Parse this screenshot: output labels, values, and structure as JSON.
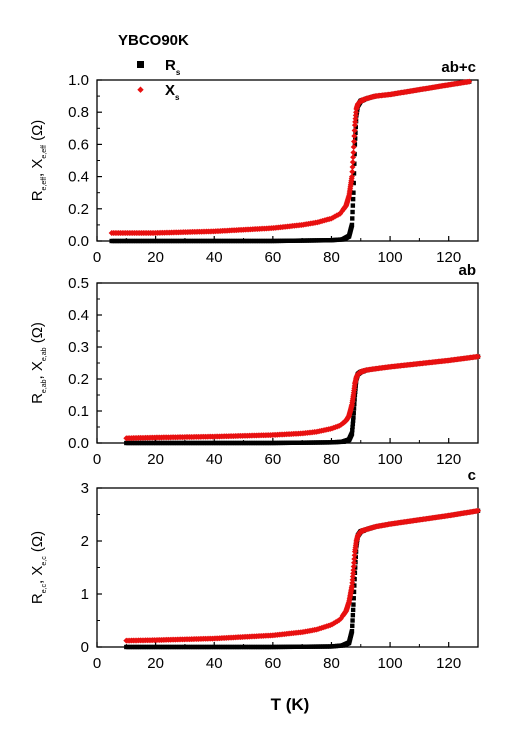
{
  "sample_title": "YBCO90K",
  "xlabel": "T (K)",
  "colors": {
    "Rs": "#000000",
    "Xs": "#e81010",
    "axis": "#000000",
    "background": "#ffffff"
  },
  "legend": {
    "placement": "top-left",
    "items": [
      {
        "main": "R",
        "sub": "s"
      },
      {
        "main": "X",
        "sub": "s"
      }
    ]
  },
  "chart_data": [
    {
      "type": "scatter",
      "panel_label": "ab+c",
      "ylabel": {
        "r_main": "R",
        "r_sub": "e,eff",
        "sep": ", ",
        "x_main": "X",
        "x_sub": "e,eff",
        "unit": "(Ω)"
      },
      "xlim": [
        0,
        130
      ],
      "ylim": [
        0,
        1.0
      ],
      "xticks": [
        0,
        20,
        40,
        60,
        80,
        100,
        120
      ],
      "yticks": [
        0.0,
        0.2,
        0.4,
        0.6,
        0.8,
        1.0
      ],
      "ytick_labels": [
        "0.0",
        "0.2",
        "0.4",
        "0.6",
        "0.8",
        "1.0"
      ],
      "grid": false,
      "series": [
        {
          "name": "Rs",
          "x": [
            5,
            20,
            40,
            60,
            80,
            84,
            86,
            87,
            87.5,
            88,
            88.5,
            89,
            90,
            92,
            95,
            100,
            110,
            120,
            127
          ],
          "y": [
            0.0,
            0.0,
            0.0,
            0.0,
            0.005,
            0.01,
            0.03,
            0.1,
            0.3,
            0.6,
            0.78,
            0.84,
            0.87,
            0.885,
            0.9,
            0.91,
            0.94,
            0.97,
            0.99
          ]
        },
        {
          "name": "Xs",
          "x": [
            5,
            20,
            40,
            60,
            70,
            75,
            80,
            83,
            85,
            86,
            87,
            87.5,
            88,
            88.5,
            89,
            90,
            92,
            95,
            100,
            110,
            120,
            127
          ],
          "y": [
            0.05,
            0.05,
            0.06,
            0.08,
            0.1,
            0.115,
            0.14,
            0.17,
            0.22,
            0.28,
            0.4,
            0.55,
            0.72,
            0.82,
            0.85,
            0.87,
            0.885,
            0.9,
            0.91,
            0.94,
            0.97,
            0.99
          ]
        }
      ]
    },
    {
      "type": "scatter",
      "panel_label": "ab",
      "ylabel": {
        "r_main": "R",
        "r_sub": "e,ab",
        "sep": ", ",
        "x_main": "X",
        "x_sub": "e,ab",
        "unit": "(Ω)"
      },
      "xlim": [
        0,
        130
      ],
      "ylim": [
        0,
        0.5
      ],
      "xticks": [
        0,
        20,
        40,
        60,
        80,
        100,
        120
      ],
      "yticks": [
        0.0,
        0.1,
        0.2,
        0.3,
        0.4,
        0.5
      ],
      "ytick_labels": [
        "0.0",
        "0.1",
        "0.2",
        "0.3",
        "0.4",
        "0.5"
      ],
      "grid": false,
      "series": [
        {
          "name": "Rs",
          "x": [
            10,
            20,
            40,
            60,
            80,
            84,
            86,
            87,
            87.5,
            88,
            88.5,
            89,
            90,
            92,
            95,
            100,
            110,
            120,
            130
          ],
          "y": [
            0.0,
            0.0,
            0.0,
            0.0,
            0.002,
            0.004,
            0.01,
            0.03,
            0.08,
            0.15,
            0.2,
            0.215,
            0.222,
            0.228,
            0.232,
            0.238,
            0.248,
            0.258,
            0.27
          ]
        },
        {
          "name": "Xs",
          "x": [
            10,
            20,
            40,
            60,
            70,
            75,
            80,
            83,
            85,
            86,
            87,
            87.5,
            88,
            88.5,
            89,
            90,
            92,
            95,
            100,
            110,
            120,
            130
          ],
          "y": [
            0.015,
            0.017,
            0.02,
            0.025,
            0.03,
            0.035,
            0.045,
            0.055,
            0.07,
            0.085,
            0.12,
            0.15,
            0.185,
            0.205,
            0.215,
            0.222,
            0.228,
            0.232,
            0.238,
            0.248,
            0.258,
            0.27
          ]
        }
      ]
    },
    {
      "type": "scatter",
      "panel_label": "c",
      "ylabel": {
        "r_main": "R",
        "r_sub": "e,c",
        "sep": ", ",
        "x_main": "X",
        "x_sub": "e,c",
        "unit": "(Ω)"
      },
      "xlim": [
        0,
        130
      ],
      "ylim": [
        0,
        3
      ],
      "xticks": [
        0,
        20,
        40,
        60,
        80,
        100,
        120
      ],
      "yticks": [
        0,
        1,
        2,
        3
      ],
      "ytick_labels": [
        "0",
        "1",
        "2",
        "3"
      ],
      "grid": false,
      "series": [
        {
          "name": "Rs",
          "x": [
            10,
            20,
            40,
            60,
            80,
            84,
            86,
            87,
            87.5,
            88,
            88.5,
            89,
            90,
            92,
            95,
            100,
            110,
            120,
            130
          ],
          "y": [
            0.0,
            0.0,
            0.0,
            0.0,
            0.01,
            0.03,
            0.08,
            0.3,
            0.8,
            1.4,
            1.9,
            2.1,
            2.18,
            2.22,
            2.27,
            2.32,
            2.4,
            2.48,
            2.57
          ]
        },
        {
          "name": "Xs",
          "x": [
            10,
            20,
            40,
            60,
            70,
            75,
            80,
            83,
            85,
            86,
            87,
            87.5,
            88,
            88.5,
            89,
            90,
            92,
            95,
            100,
            110,
            120,
            130
          ],
          "y": [
            0.12,
            0.13,
            0.16,
            0.22,
            0.28,
            0.33,
            0.42,
            0.52,
            0.68,
            0.85,
            1.15,
            1.45,
            1.8,
            2.0,
            2.1,
            2.18,
            2.22,
            2.27,
            2.32,
            2.4,
            2.48,
            2.57
          ]
        }
      ]
    }
  ]
}
